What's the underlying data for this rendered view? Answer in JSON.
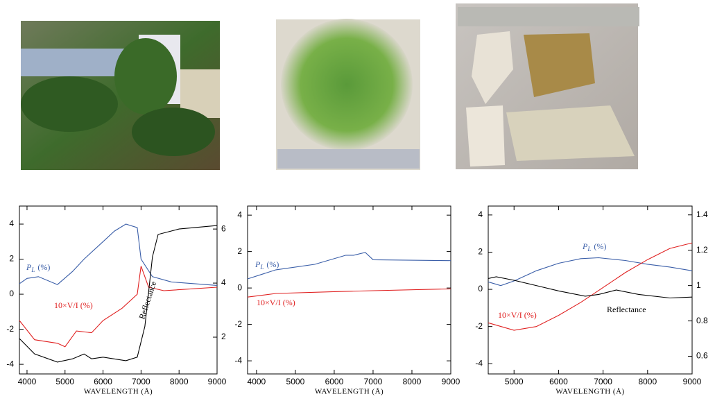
{
  "chart_data": [
    {
      "type": "line",
      "xlabel": "WAVELENGTH (Å)",
      "xlim": [
        3800,
        9000
      ],
      "xticks": [
        4000,
        5000,
        6000,
        7000,
        8000,
        9000
      ],
      "ylim": [
        -4.55,
        5.03
      ],
      "yticks": [
        -4,
        -2,
        0,
        2,
        4
      ],
      "y2lim": [
        0.64,
        6.85
      ],
      "y2ticks": [
        2,
        4,
        6
      ],
      "series": [
        {
          "name": "P",
          "subscript": "L",
          "suffix": "(%)",
          "color": "#3a5ea8",
          "x": [
            3800,
            4000,
            4300,
            4800,
            5200,
            5500,
            6000,
            6300,
            6600,
            6900,
            7000,
            7300,
            7800,
            9000
          ],
          "values": [
            0.6,
            0.9,
            1.0,
            0.55,
            1.3,
            2.0,
            3.0,
            3.6,
            4.0,
            3.8,
            2.0,
            1.0,
            0.7,
            0.5
          ]
        },
        {
          "name": "10×V/I (%)",
          "color": "#e02020",
          "x": [
            3800,
            4200,
            4800,
            5000,
            5300,
            5700,
            6000,
            6500,
            6900,
            7000,
            7200,
            7600,
            9000
          ],
          "values": [
            -1.5,
            -2.6,
            -2.8,
            -3.0,
            -2.1,
            -2.2,
            -1.5,
            -0.8,
            0.0,
            1.6,
            0.4,
            0.2,
            0.4
          ]
        },
        {
          "name": "Reflectance",
          "color": "#000000",
          "axis": "y2",
          "x": [
            3800,
            4200,
            4800,
            5200,
            5500,
            5700,
            6000,
            6600,
            6900,
            7100,
            7300,
            7450,
            8000,
            9000
          ],
          "values": [
            1.95,
            1.38,
            1.08,
            1.2,
            1.38,
            1.2,
            1.26,
            1.13,
            1.26,
            2.4,
            4.97,
            5.8,
            6.0,
            6.13
          ]
        }
      ]
    },
    {
      "type": "line",
      "xlabel": "WAVELENGTH (Å)",
      "xlim": [
        3770,
        9000
      ],
      "xticks": [
        4000,
        5000,
        6000,
        7000,
        8000,
        9000
      ],
      "ylim": [
        -4.72,
        4.5
      ],
      "yticks": [
        -4,
        -2,
        0,
        2,
        4
      ],
      "series": [
        {
          "name": "P",
          "subscript": "L",
          "suffix": "(%)",
          "color": "#3a5ea8",
          "x": [
            3770,
            4500,
            5500,
            6300,
            6500,
            6800,
            7000,
            9000
          ],
          "values": [
            0.5,
            1.0,
            1.3,
            1.8,
            1.8,
            1.95,
            1.55,
            1.5
          ]
        },
        {
          "name": "10×V/I (%)",
          "color": "#e02020",
          "x": [
            3770,
            4500,
            6000,
            7000,
            9000
          ],
          "values": [
            -0.5,
            -0.3,
            -0.2,
            -0.15,
            -0.05
          ]
        }
      ]
    },
    {
      "type": "line",
      "xlabel": "WAVELENGTH (Å)",
      "xlim": [
        4420,
        9000
      ],
      "xticks": [
        5000,
        6000,
        7000,
        8000,
        9000
      ],
      "ylim": [
        -4.55,
        4.48
      ],
      "yticks": [
        -4,
        -2,
        0,
        2,
        4
      ],
      "y2lim": [
        0.5,
        1.45
      ],
      "y2ticks": [
        0.6,
        0.8,
        1,
        1.2,
        1.4
      ],
      "series": [
        {
          "name": "P",
          "subscript": "L",
          "suffix": "(%)",
          "color": "#3a5ea8",
          "x": [
            4420,
            4700,
            5000,
            5500,
            6000,
            6500,
            6900,
            7500,
            8000,
            8500,
            9000
          ],
          "values": [
            0.4,
            0.2,
            0.45,
            1.0,
            1.4,
            1.65,
            1.7,
            1.55,
            1.35,
            1.2,
            1.0
          ]
        },
        {
          "name": "10×V/I (%)",
          "color": "#e02020",
          "x": [
            4420,
            5000,
            5500,
            6000,
            6500,
            7000,
            7500,
            8000,
            8500,
            9000
          ],
          "values": [
            -1.8,
            -2.2,
            -2.0,
            -1.4,
            -0.7,
            0.1,
            0.9,
            1.6,
            2.2,
            2.5
          ]
        },
        {
          "name": "Reflectance",
          "color": "#000000",
          "axis": "y2",
          "x": [
            4420,
            4600,
            5000,
            5500,
            6000,
            6600,
            6900,
            7300,
            7800,
            8500,
            9000
          ],
          "values": [
            1.04,
            1.05,
            1.03,
            1.0,
            0.97,
            0.94,
            0.95,
            0.975,
            0.95,
            0.93,
            0.935
          ]
        }
      ]
    }
  ]
}
